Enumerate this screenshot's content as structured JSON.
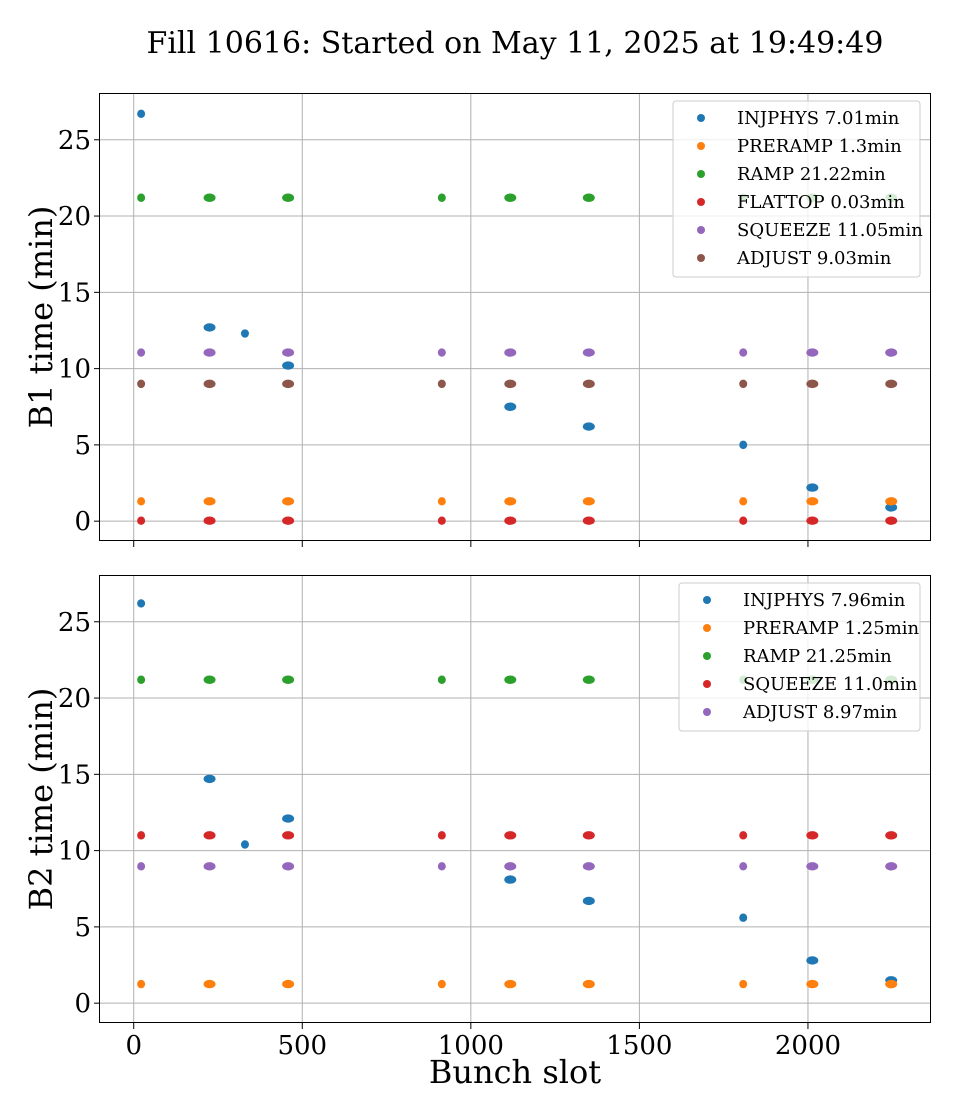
{
  "chart_data": {
    "type": "scatter",
    "title": "Fill 10616: Started on May 11, 2025 at 19:49:49",
    "xlabel": "Bunch slot",
    "xlim": [
      -100,
      2365
    ],
    "x_ticks": [
      0,
      500,
      1000,
      1500,
      2000
    ],
    "grid": true,
    "legend_placement": "top-right",
    "panels": [
      {
        "ylabel": "B1 time (min)",
        "ylim": [
          -1.3,
          28.0
        ],
        "y_ticks": [
          0,
          5,
          10,
          15,
          20,
          25
        ],
        "series": [
          {
            "name": "INJPHYS 7.01min",
            "color": "#1f77b4",
            "points": [
              [
                22,
                26.7
              ],
              [
                225,
                12.7
              ],
              [
                330,
                12.3
              ],
              [
                458,
                10.2
              ],
              [
                1117,
                7.5
              ],
              [
                1350,
                6.2
              ],
              [
                1808,
                5.0
              ],
              [
                2013,
                2.2
              ],
              [
                2247,
                0.9
              ]
            ]
          },
          {
            "name": "PRERAMP 1.3min",
            "color": "#ff7f0e",
            "points": [
              [
                22,
                1.3
              ],
              [
                225,
                1.3
              ],
              [
                458,
                1.3
              ],
              [
                914,
                1.3
              ],
              [
                1117,
                1.3
              ],
              [
                1350,
                1.3
              ],
              [
                1808,
                1.3
              ],
              [
                2013,
                1.3
              ],
              [
                2247,
                1.3
              ]
            ]
          },
          {
            "name": "RAMP 21.22min",
            "color": "#2ca02c",
            "points": [
              [
                22,
                21.2
              ],
              [
                225,
                21.2
              ],
              [
                458,
                21.2
              ],
              [
                914,
                21.2
              ],
              [
                1117,
                21.2
              ],
              [
                1350,
                21.2
              ],
              [
                1808,
                21.2
              ],
              [
                2013,
                21.2
              ],
              [
                2247,
                21.2
              ]
            ]
          },
          {
            "name": "FLATTOP 0.03min",
            "color": "#d62728",
            "points": [
              [
                22,
                0.03
              ],
              [
                225,
                0.03
              ],
              [
                458,
                0.03
              ],
              [
                914,
                0.03
              ],
              [
                1117,
                0.03
              ],
              [
                1350,
                0.03
              ],
              [
                1808,
                0.03
              ],
              [
                2013,
                0.03
              ],
              [
                2247,
                0.03
              ]
            ]
          },
          {
            "name": "SQUEEZE 11.05min",
            "color": "#9467bd",
            "points": [
              [
                22,
                11.05
              ],
              [
                225,
                11.05
              ],
              [
                458,
                11.05
              ],
              [
                914,
                11.05
              ],
              [
                1117,
                11.05
              ],
              [
                1350,
                11.05
              ],
              [
                1808,
                11.05
              ],
              [
                2013,
                11.05
              ],
              [
                2247,
                11.05
              ]
            ]
          },
          {
            "name": "ADJUST 9.03min",
            "color": "#8c564b",
            "points": [
              [
                22,
                9.0
              ],
              [
                225,
                9.0
              ],
              [
                458,
                9.0
              ],
              [
                914,
                9.0
              ],
              [
                1117,
                9.0
              ],
              [
                1350,
                9.0
              ],
              [
                1808,
                9.0
              ],
              [
                2013,
                9.0
              ],
              [
                2247,
                9.0
              ]
            ]
          }
        ]
      },
      {
        "ylabel": "B2 time (min)",
        "ylim": [
          -1.3,
          28.0
        ],
        "y_ticks": [
          0,
          5,
          10,
          15,
          20,
          25
        ],
        "series": [
          {
            "name": "INJPHYS 7.96min",
            "color": "#1f77b4",
            "points": [
              [
                22,
                26.2
              ],
              [
                225,
                14.7
              ],
              [
                330,
                10.4
              ],
              [
                458,
                12.1
              ],
              [
                1117,
                8.1
              ],
              [
                1350,
                6.7
              ],
              [
                1808,
                5.6
              ],
              [
                2013,
                2.8
              ],
              [
                2247,
                1.5
              ]
            ]
          },
          {
            "name": "PRERAMP 1.25min",
            "color": "#ff7f0e",
            "points": [
              [
                22,
                1.25
              ],
              [
                225,
                1.25
              ],
              [
                458,
                1.25
              ],
              [
                914,
                1.25
              ],
              [
                1117,
                1.25
              ],
              [
                1350,
                1.25
              ],
              [
                1808,
                1.25
              ],
              [
                2013,
                1.25
              ],
              [
                2247,
                1.25
              ]
            ]
          },
          {
            "name": "RAMP 21.25min",
            "color": "#2ca02c",
            "points": [
              [
                22,
                21.2
              ],
              [
                225,
                21.2
              ],
              [
                458,
                21.2
              ],
              [
                914,
                21.2
              ],
              [
                1117,
                21.2
              ],
              [
                1350,
                21.2
              ],
              [
                1808,
                21.2
              ],
              [
                2013,
                21.2
              ],
              [
                2247,
                21.2
              ]
            ]
          },
          {
            "name": "SQUEEZE 11.0min",
            "color": "#d62728",
            "points": [
              [
                22,
                11.0
              ],
              [
                225,
                11.0
              ],
              [
                458,
                11.0
              ],
              [
                914,
                11.0
              ],
              [
                1117,
                11.0
              ],
              [
                1350,
                11.0
              ],
              [
                1808,
                11.0
              ],
              [
                2013,
                11.0
              ],
              [
                2247,
                11.0
              ]
            ]
          },
          {
            "name": "ADJUST 8.97min",
            "color": "#9467bd",
            "points": [
              [
                22,
                8.97
              ],
              [
                225,
                8.97
              ],
              [
                458,
                8.97
              ],
              [
                914,
                8.97
              ],
              [
                1117,
                8.97
              ],
              [
                1350,
                8.97
              ],
              [
                1808,
                8.97
              ],
              [
                2013,
                8.97
              ],
              [
                2247,
                8.97
              ]
            ]
          }
        ]
      }
    ]
  }
}
